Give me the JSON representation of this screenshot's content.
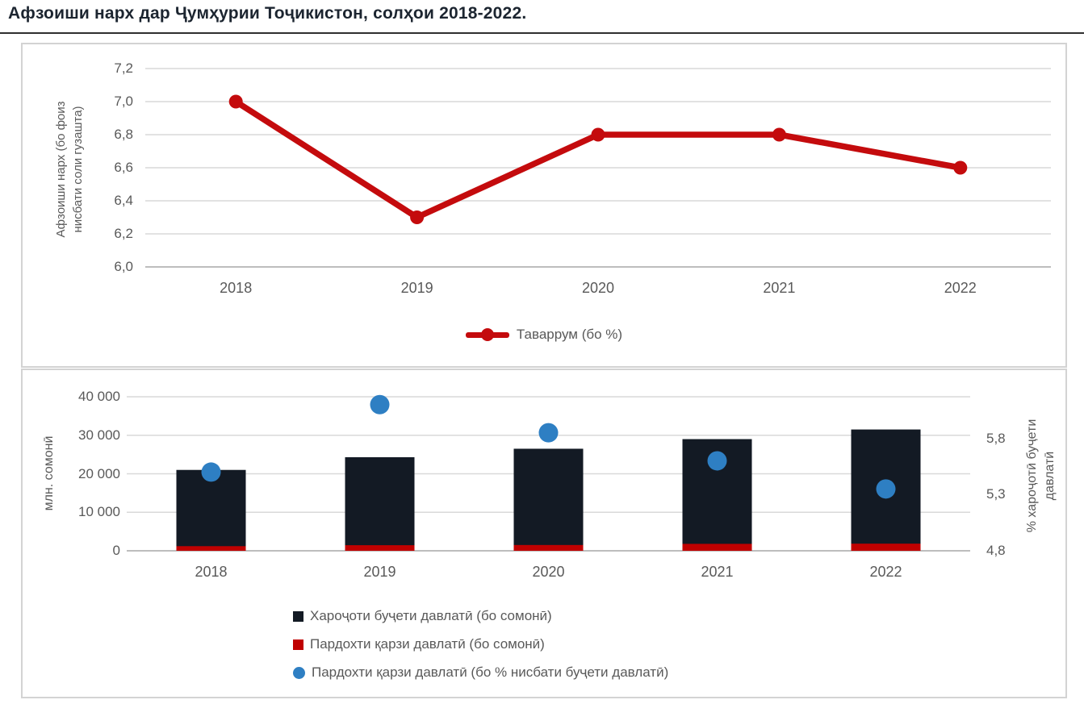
{
  "page_title": "Афзоиши нарх дар Ҷумҳурии Тоҷикистон, солҳои 2018-2022.",
  "colors": {
    "line_red": "#c40b0d",
    "bar_dark": "#131a24",
    "bar_red": "#c00000",
    "dot_blue": "#2e7fc3",
    "grid": "#d9d9d9",
    "axis_line": "#bdbdbd",
    "axis_text": "#595959",
    "panel_border": "#d3d3d3",
    "title_text": "#1c2530"
  },
  "chart_data": [
    {
      "type": "line",
      "categories": [
        "2018",
        "2019",
        "2020",
        "2021",
        "2022"
      ],
      "series": [
        {
          "name": "Таваррум (бо %)",
          "values": [
            7.0,
            6.3,
            6.8,
            6.8,
            6.6
          ],
          "color": "#c40b0d"
        }
      ],
      "ylabel": "Афзоиши нарх (бо фоиз нисбати соли гузашта)",
      "ylabel_lines": [
        "Афзоиши нарх (бо фоиз",
        "нисбати соли гузашта)"
      ],
      "ylim": [
        6.0,
        7.2
      ],
      "ytick_step": 0.2,
      "ytick_labels": [
        "7,2",
        "7,0",
        "6,8",
        "6,6",
        "6,4",
        "6,2",
        "6,0"
      ],
      "grid": true,
      "legend_position": "bottom"
    },
    {
      "type": "bar+scatter",
      "categories": [
        "2018",
        "2019",
        "2020",
        "2021",
        "2022"
      ],
      "series": [
        {
          "name": "Хароҷоти буҷети давлатӣ (бо сомонӣ)",
          "type": "bar",
          "axis": "left",
          "color": "#131a24",
          "values": [
            21000,
            24300,
            26500,
            29000,
            31500
          ]
        },
        {
          "name": "Пардохти қарзи давлатӣ (бо сомонӣ)",
          "type": "bar",
          "axis": "left",
          "color": "#c00000",
          "values": [
            1200,
            1450,
            1500,
            1800,
            1850
          ]
        },
        {
          "name": "Пардохти қарзи давлатӣ (бо % нисбати буҷети давлатӣ)",
          "type": "scatter",
          "axis": "right",
          "color": "#2e7fc3",
          "values": [
            5.5,
            6.1,
            5.85,
            5.6,
            5.35
          ]
        }
      ],
      "left_axis": {
        "title": "млн. сомонӣ",
        "lim": [
          0,
          40000
        ],
        "tick_labels": [
          "40 000",
          "30 000",
          "20 000",
          "10 000",
          "0"
        ]
      },
      "right_axis": {
        "title": "% хароҷотӣ буҷети давлатӣ",
        "title_lines": [
          "% хароҷотӣ буҷети",
          "давлатӣ"
        ],
        "lim": [
          4.8,
          6.17
        ],
        "ticks": [
          5.8,
          5.3,
          4.8
        ],
        "tick_labels": [
          "5,8",
          "5,3",
          "4,8"
        ]
      },
      "grid": true,
      "legend_position": "bottom"
    }
  ]
}
